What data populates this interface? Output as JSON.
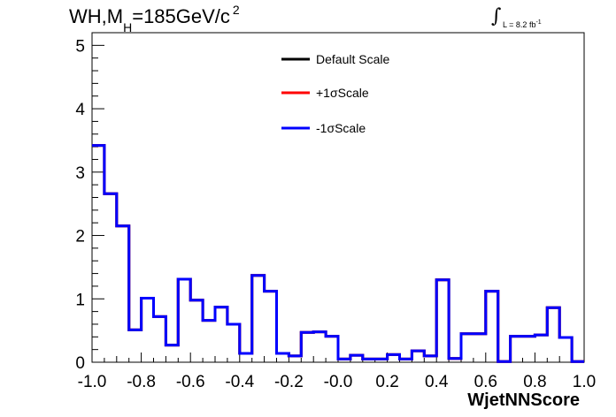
{
  "title": {
    "main": "WH,M",
    "sub": "H",
    "rest": "=185GeV/c",
    "sup": "2"
  },
  "lumi": {
    "symbol": "∫",
    "text": "L = 8.2 fb",
    "sup": "-1"
  },
  "chart_data": {
    "type": "step-histogram",
    "xlabel": "WjetNNScore",
    "ylabel": "",
    "xlim": [
      -1.0,
      1.0
    ],
    "ylim": [
      0,
      5.2
    ],
    "bin_edges": [
      -1.0,
      -0.95,
      -0.9,
      -0.85,
      -0.8,
      -0.75,
      -0.7,
      -0.65,
      -0.6,
      -0.55,
      -0.5,
      -0.45,
      -0.4,
      -0.35,
      -0.3,
      -0.25,
      -0.2,
      -0.15,
      -0.1,
      -0.05,
      0.0,
      0.05,
      0.1,
      0.15,
      0.2,
      0.25,
      0.3,
      0.35,
      0.4,
      0.45,
      0.5,
      0.55,
      0.6,
      0.65,
      0.7,
      0.75,
      0.8,
      0.85,
      0.9,
      0.95,
      1.0
    ],
    "x_ticks": [
      -1.0,
      -0.8,
      -0.6,
      -0.4,
      -0.2,
      0.0,
      0.2,
      0.4,
      0.6,
      0.8,
      1.0
    ],
    "x_tick_labels": [
      "-1.0",
      "-0.8",
      "-0.6",
      "-0.4",
      "-0.2",
      "-0.0",
      "0.2",
      "0.4",
      "0.6",
      "0.8",
      "1.0"
    ],
    "y_ticks": [
      0,
      1,
      2,
      3,
      4,
      5
    ],
    "y_tick_labels": [
      "0",
      "1",
      "2",
      "3",
      "4",
      "5"
    ],
    "series": [
      {
        "name": "Default Scale",
        "color": "#000000",
        "values": [
          3.42,
          2.66,
          2.15,
          0.51,
          1.01,
          0.72,
          0.27,
          1.31,
          0.98,
          0.66,
          0.87,
          0.6,
          0.14,
          1.37,
          1.12,
          0.14,
          0.1,
          0.47,
          0.48,
          0.41,
          0.05,
          0.11,
          0.05,
          0.05,
          0.12,
          0.05,
          0.18,
          0.1,
          1.3,
          0.06,
          0.45,
          0.45,
          1.12,
          0.01,
          0.41,
          0.41,
          0.43,
          0.86,
          0.39,
          0.01
        ]
      },
      {
        "name": "+1σScale",
        "color": "#ff0000",
        "values": [
          3.42,
          2.66,
          2.15,
          0.51,
          1.01,
          0.72,
          0.27,
          1.31,
          0.98,
          0.66,
          0.87,
          0.6,
          0.14,
          1.37,
          1.12,
          0.14,
          0.1,
          0.47,
          0.48,
          0.41,
          0.05,
          0.11,
          0.05,
          0.05,
          0.12,
          0.05,
          0.18,
          0.1,
          1.3,
          0.06,
          0.45,
          0.45,
          1.12,
          0.01,
          0.41,
          0.41,
          0.43,
          0.86,
          0.39,
          0.01
        ]
      },
      {
        "name": "-1σScale",
        "color": "#0000ff",
        "values": [
          3.42,
          2.66,
          2.15,
          0.51,
          1.01,
          0.72,
          0.27,
          1.31,
          0.98,
          0.66,
          0.87,
          0.6,
          0.14,
          1.37,
          1.12,
          0.14,
          0.1,
          0.47,
          0.48,
          0.41,
          0.05,
          0.11,
          0.05,
          0.05,
          0.12,
          0.05,
          0.18,
          0.1,
          1.3,
          0.06,
          0.45,
          0.45,
          1.12,
          0.01,
          0.41,
          0.41,
          0.43,
          0.86,
          0.39,
          0.01
        ]
      }
    ],
    "legend_position": "top-center"
  }
}
